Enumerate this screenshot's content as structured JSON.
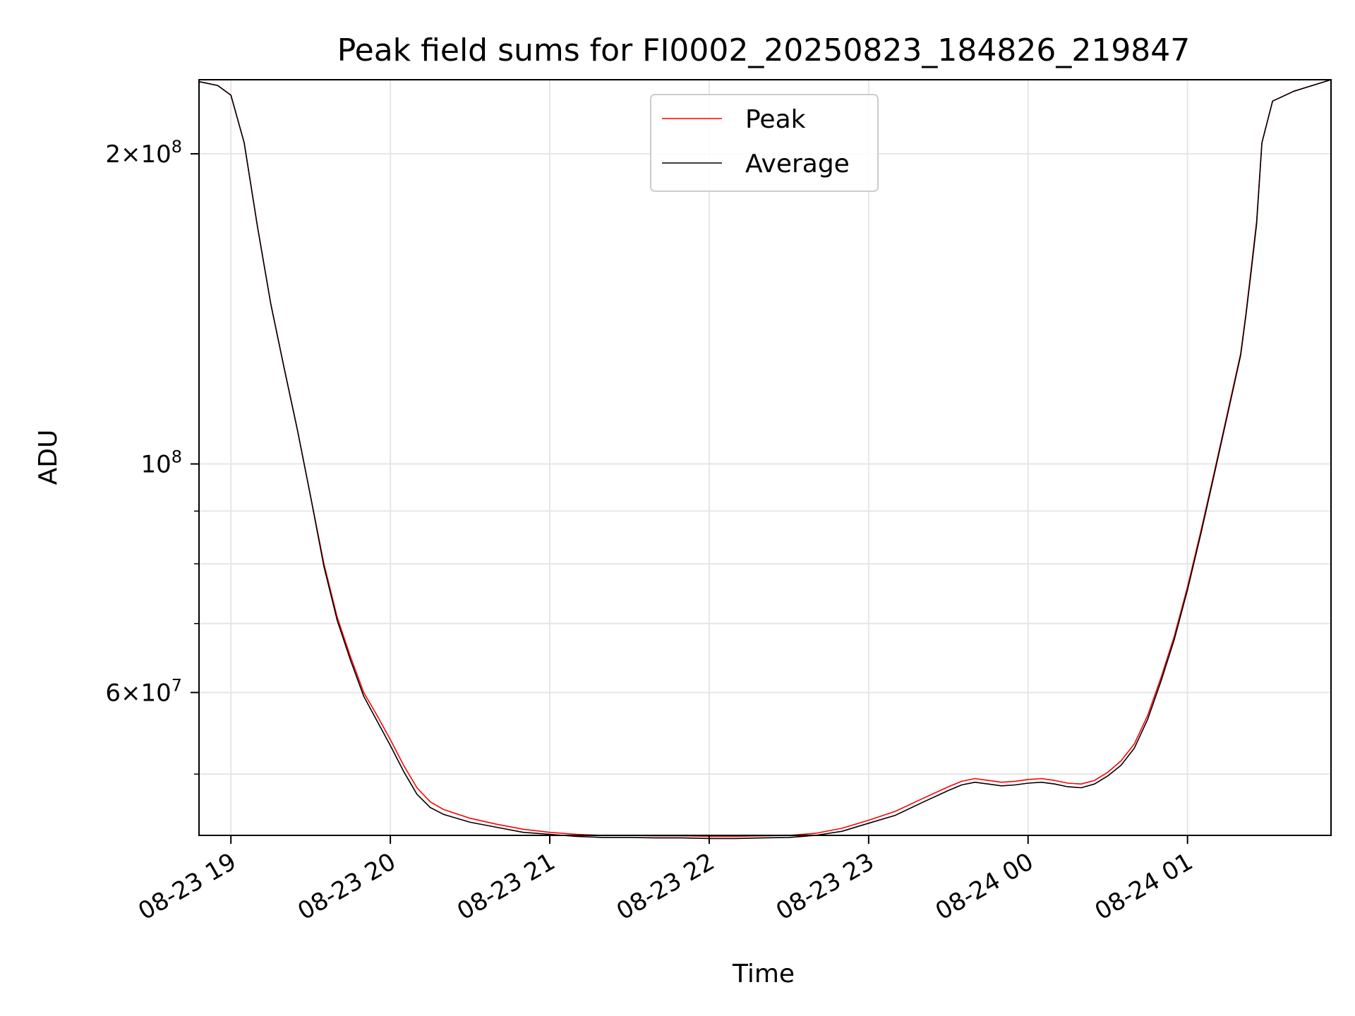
{
  "chart_data": {
    "type": "line",
    "title": "Peak field sums for FI0002_20250823_184826_219847",
    "xlabel": "Time",
    "ylabel": "ADU",
    "x_scale": "time",
    "y_scale": "log",
    "xlim": [
      "2025-08-23 18:48",
      "2025-08-24 01:54"
    ],
    "ylim": [
      43600000,
      236000000
    ],
    "x_ticks": [
      {
        "value": "2025-08-23 19:00",
        "label": "08-23 19"
      },
      {
        "value": "2025-08-23 20:00",
        "label": "08-23 20"
      },
      {
        "value": "2025-08-23 21:00",
        "label": "08-23 21"
      },
      {
        "value": "2025-08-23 22:00",
        "label": "08-23 22"
      },
      {
        "value": "2025-08-23 23:00",
        "label": "08-23 23"
      },
      {
        "value": "2025-08-24 00:00",
        "label": "08-24 00"
      },
      {
        "value": "2025-08-24 01:00",
        "label": "08-24 01"
      }
    ],
    "y_ticks_major": [
      {
        "value": 200000000,
        "mant": "2",
        "exp": "8"
      },
      {
        "value": 100000000,
        "mant": "",
        "exp": "8"
      },
      {
        "value": 60000000,
        "mant": "6",
        "exp": "7"
      }
    ],
    "y_ticks_minor": [
      50000000,
      70000000,
      80000000,
      90000000
    ],
    "grid": true,
    "legend_position": "top-center",
    "series": [
      {
        "name": "Peak",
        "color": "#ff0000",
        "x": [
          "2025-08-23 18:48",
          "2025-08-23 18:55",
          "2025-08-23 19:00",
          "2025-08-23 19:05",
          "2025-08-23 19:10",
          "2025-08-23 19:15",
          "2025-08-23 19:20",
          "2025-08-23 19:25",
          "2025-08-23 19:30",
          "2025-08-23 19:35",
          "2025-08-23 19:40",
          "2025-08-23 19:45",
          "2025-08-23 19:50",
          "2025-08-23 19:55",
          "2025-08-23 20:00",
          "2025-08-23 20:05",
          "2025-08-23 20:10",
          "2025-08-23 20:15",
          "2025-08-23 20:20",
          "2025-08-23 20:30",
          "2025-08-23 20:40",
          "2025-08-23 20:50",
          "2025-08-23 21:00",
          "2025-08-23 21:10",
          "2025-08-23 21:20",
          "2025-08-23 21:30",
          "2025-08-23 21:40",
          "2025-08-23 21:50",
          "2025-08-23 22:00",
          "2025-08-23 22:10",
          "2025-08-23 22:20",
          "2025-08-23 22:30",
          "2025-08-23 22:40",
          "2025-08-23 22:50",
          "2025-08-23 23:00",
          "2025-08-23 23:10",
          "2025-08-23 23:20",
          "2025-08-23 23:30",
          "2025-08-23 23:35",
          "2025-08-23 23:40",
          "2025-08-23 23:45",
          "2025-08-23 23:50",
          "2025-08-23 23:55",
          "2025-08-24 00:00",
          "2025-08-24 00:05",
          "2025-08-24 00:10",
          "2025-08-24 00:15",
          "2025-08-24 00:20",
          "2025-08-24 00:25",
          "2025-08-24 00:30",
          "2025-08-24 00:35",
          "2025-08-24 00:40",
          "2025-08-24 00:45",
          "2025-08-24 00:50",
          "2025-08-24 00:55",
          "2025-08-24 01:00",
          "2025-08-24 01:05",
          "2025-08-24 01:10",
          "2025-08-24 01:15",
          "2025-08-24 01:20",
          "2025-08-24 01:22",
          "2025-08-24 01:24",
          "2025-08-24 01:26",
          "2025-08-24 01:28",
          "2025-08-24 01:32",
          "2025-08-24 01:40",
          "2025-08-24 01:54"
        ],
        "values": [
          235000000,
          233000000,
          228000000,
          205000000,
          170000000,
          143000000,
          124000000,
          108000000,
          93000000,
          80000000,
          71000000,
          65000000,
          60000000,
          57000000,
          54000000,
          51000000,
          48500000,
          47000000,
          46200000,
          45300000,
          44700000,
          44200000,
          43900000,
          43700000,
          43600000,
          43600000,
          43550000,
          43550000,
          43500000,
          43500000,
          43550000,
          43600000,
          43800000,
          44300000,
          45100000,
          46000000,
          47300000,
          48600000,
          49200000,
          49500000,
          49300000,
          49100000,
          49200000,
          49400000,
          49500000,
          49300000,
          49000000,
          48900000,
          49300000,
          50200000,
          51500000,
          53500000,
          57000000,
          62000000,
          68000000,
          76000000,
          86000000,
          98000000,
          112000000,
          128000000,
          140000000,
          155000000,
          172000000,
          205000000,
          225000000,
          230000000,
          236000000
        ]
      },
      {
        "name": "Average",
        "color": "#000000",
        "x": [
          "2025-08-23 18:48",
          "2025-08-23 18:55",
          "2025-08-23 19:00",
          "2025-08-23 19:05",
          "2025-08-23 19:10",
          "2025-08-23 19:15",
          "2025-08-23 19:20",
          "2025-08-23 19:25",
          "2025-08-23 19:30",
          "2025-08-23 19:35",
          "2025-08-23 19:40",
          "2025-08-23 19:45",
          "2025-08-23 19:50",
          "2025-08-23 19:55",
          "2025-08-23 20:00",
          "2025-08-23 20:05",
          "2025-08-23 20:10",
          "2025-08-23 20:15",
          "2025-08-23 20:20",
          "2025-08-23 20:30",
          "2025-08-23 20:40",
          "2025-08-23 20:50",
          "2025-08-23 21:00",
          "2025-08-23 21:10",
          "2025-08-23 21:20",
          "2025-08-23 21:30",
          "2025-08-23 21:40",
          "2025-08-23 21:50",
          "2025-08-23 22:00",
          "2025-08-23 22:10",
          "2025-08-23 22:20",
          "2025-08-23 22:30",
          "2025-08-23 22:40",
          "2025-08-23 22:50",
          "2025-08-23 23:00",
          "2025-08-23 23:10",
          "2025-08-23 23:20",
          "2025-08-23 23:30",
          "2025-08-23 23:35",
          "2025-08-23 23:40",
          "2025-08-23 23:45",
          "2025-08-23 23:50",
          "2025-08-23 23:55",
          "2025-08-24 00:00",
          "2025-08-24 00:05",
          "2025-08-24 00:10",
          "2025-08-24 00:15",
          "2025-08-24 00:20",
          "2025-08-24 00:25",
          "2025-08-24 00:30",
          "2025-08-24 00:35",
          "2025-08-24 00:40",
          "2025-08-24 00:45",
          "2025-08-24 00:50",
          "2025-08-24 00:55",
          "2025-08-24 01:00",
          "2025-08-24 01:05",
          "2025-08-24 01:10",
          "2025-08-24 01:15",
          "2025-08-24 01:20",
          "2025-08-24 01:22",
          "2025-08-24 01:24",
          "2025-08-24 01:26",
          "2025-08-24 01:28",
          "2025-08-24 01:32",
          "2025-08-24 01:40",
          "2025-08-24 01:54"
        ],
        "values": [
          235000000,
          233000000,
          228000000,
          205000000,
          170000000,
          143000000,
          124000000,
          108000000,
          93000000,
          79500000,
          70500000,
          64500000,
          59500000,
          56300000,
          53300000,
          50300000,
          47800000,
          46400000,
          45700000,
          44900000,
          44400000,
          43900000,
          43700000,
          43500000,
          43400000,
          43400000,
          43350000,
          43350000,
          43300000,
          43300000,
          43350000,
          43400000,
          43600000,
          44000000,
          44800000,
          45600000,
          46900000,
          48200000,
          48800000,
          49100000,
          48900000,
          48700000,
          48800000,
          49000000,
          49100000,
          48900000,
          48600000,
          48500000,
          48900000,
          49800000,
          51000000,
          53000000,
          56500000,
          61500000,
          67500000,
          75500000,
          85500000,
          97500000,
          111500000,
          127500000,
          139500000,
          154000000,
          171000000,
          205000000,
          225000000,
          230000000,
          236000000
        ]
      }
    ]
  }
}
